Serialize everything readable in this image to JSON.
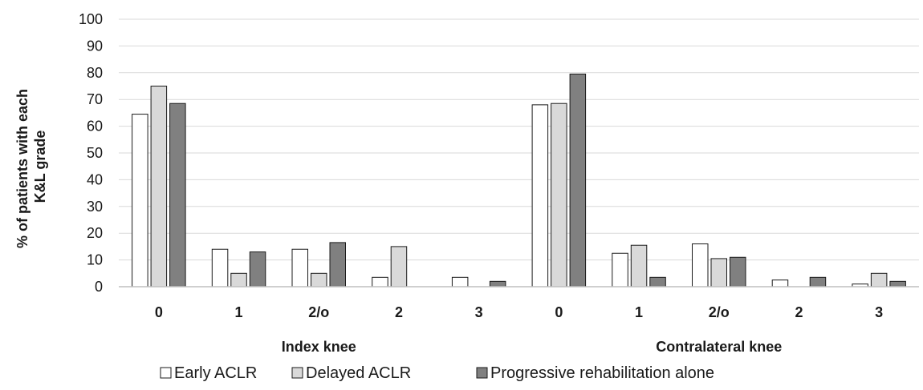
{
  "chart_data": {
    "type": "bar",
    "ylabel_lines": [
      "% of patients with each",
      "K&L grade"
    ],
    "ylim": [
      0,
      100
    ],
    "yticks": [
      0,
      10,
      20,
      30,
      40,
      50,
      60,
      70,
      80,
      90,
      100
    ],
    "grid": true,
    "legend_position": "bottom",
    "groups": [
      {
        "label": "Index knee",
        "categories": [
          "0",
          "1",
          "2/o",
          "2",
          "3"
        ],
        "series": [
          {
            "name": "Early ACLR",
            "values": [
              64.5,
              14,
              14,
              3.5,
              3.5
            ]
          },
          {
            "name": "Delayed ACLR",
            "values": [
              75,
              5,
              5,
              15,
              0
            ]
          },
          {
            "name": "Progressive rehabilitation alone",
            "values": [
              68.5,
              13,
              16.5,
              0,
              2
            ]
          }
        ]
      },
      {
        "label": "Contralateral knee",
        "categories": [
          "0",
          "1",
          "2/o",
          "2",
          "3"
        ],
        "series": [
          {
            "name": "Early ACLR",
            "values": [
              68,
              12.5,
              16,
              2.5,
              1
            ]
          },
          {
            "name": "Delayed ACLR",
            "values": [
              68.5,
              15.5,
              10.5,
              0,
              5
            ]
          },
          {
            "name": "Progressive rehabilitation alone",
            "values": [
              79.5,
              3.5,
              11,
              3.5,
              2
            ]
          }
        ]
      }
    ],
    "colors": {
      "Early ACLR": "#ffffff",
      "Delayed ACLR": "#d9d9d9",
      "Progressive rehabilitation alone": "#808080"
    }
  }
}
